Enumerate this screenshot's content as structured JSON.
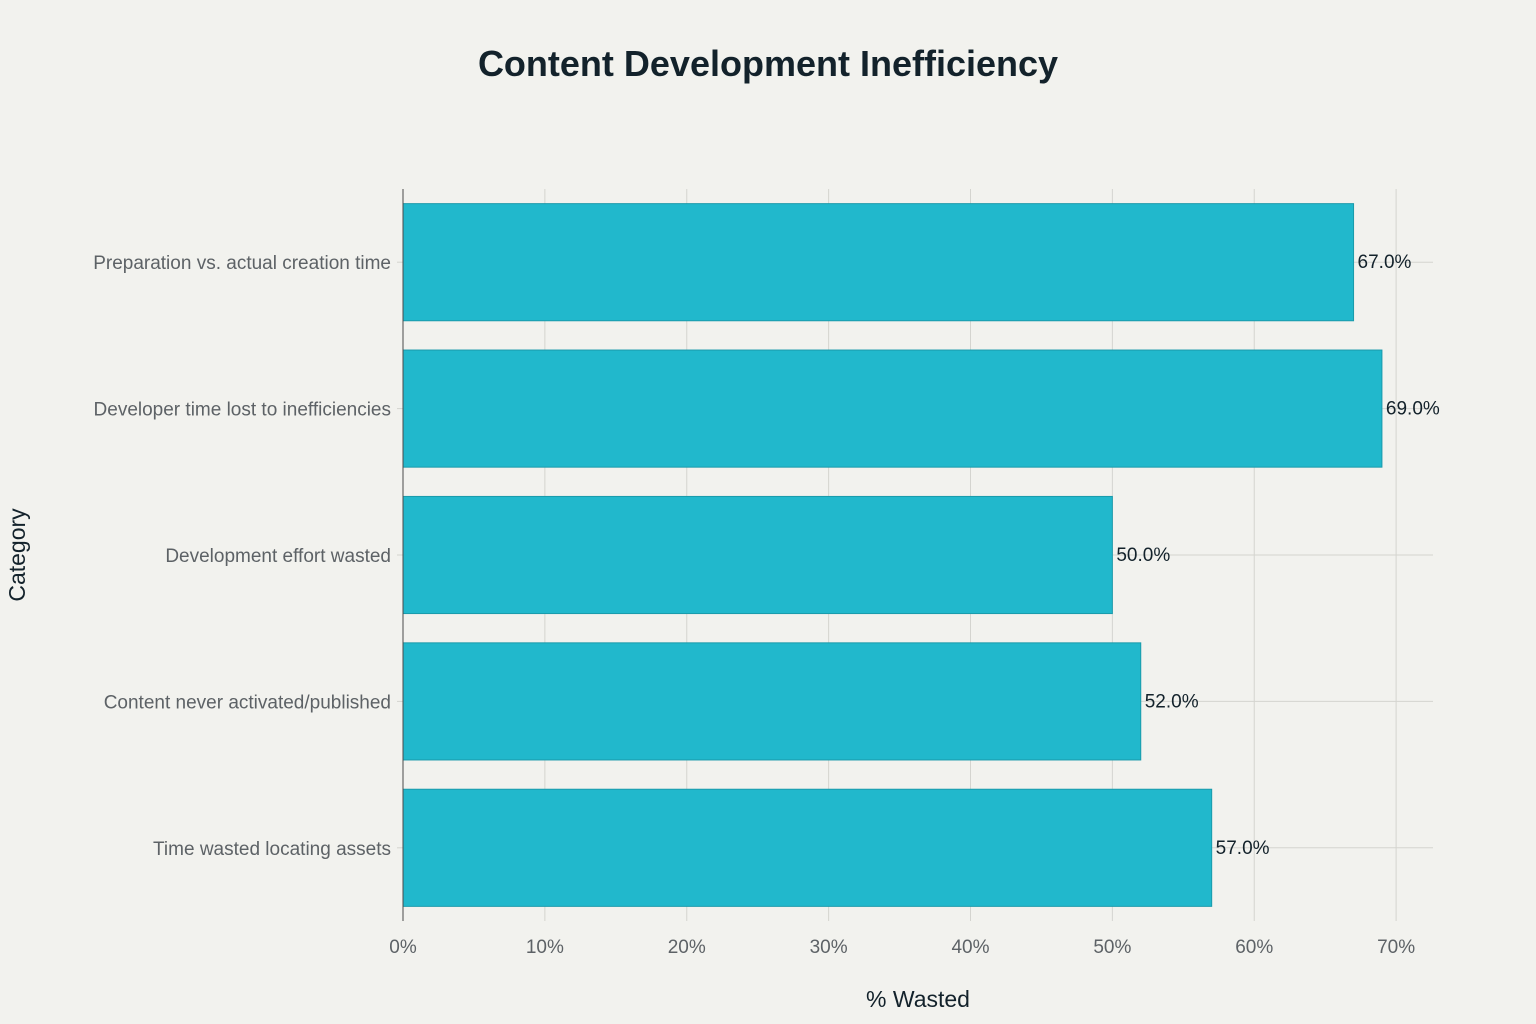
{
  "chart_data": {
    "type": "bar",
    "orientation": "horizontal",
    "title": "Content Development Inefficiency",
    "xlabel": "% Wasted",
    "ylabel": "Category",
    "categories": [
      "Preparation vs. actual creation time",
      "Developer time lost to inefficiencies",
      "Development effort wasted",
      "Content never activated/published",
      "Time wasted locating assets"
    ],
    "values": [
      67.0,
      69.0,
      50.0,
      52.0,
      57.0
    ],
    "data_labels": [
      "67.0%",
      "69.0%",
      "50.0%",
      "52.0%",
      "57.0%"
    ],
    "xticks": [
      0,
      10,
      20,
      30,
      40,
      50,
      60,
      70
    ],
    "xtick_labels": [
      "0%",
      "10%",
      "20%",
      "30%",
      "40%",
      "50%",
      "60%",
      "70%"
    ],
    "xlim": [
      0,
      72.6
    ],
    "grid": true,
    "bar_color": "#21b8cc",
    "bar_edge_color": "#1a9aab"
  }
}
